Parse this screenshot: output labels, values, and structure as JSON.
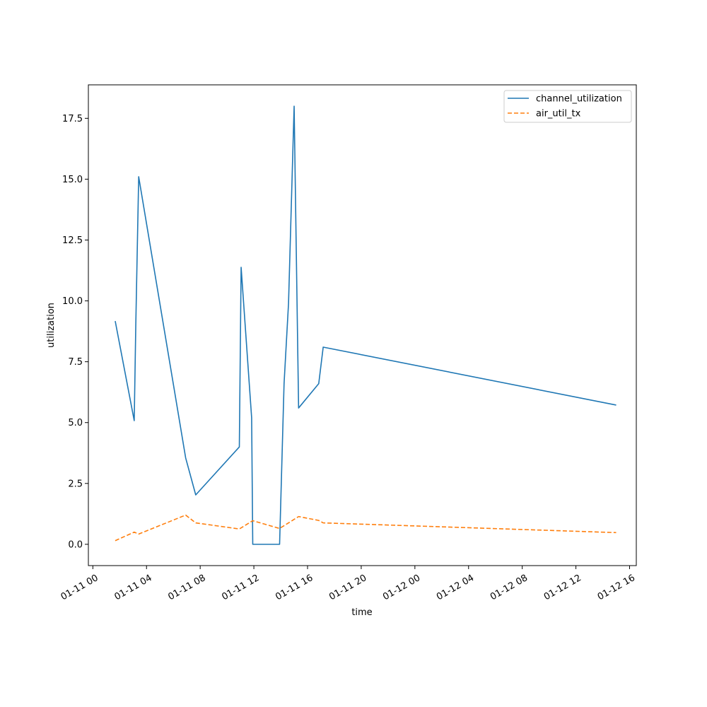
{
  "chart_data": {
    "type": "line",
    "title": "",
    "xlabel": "time",
    "ylabel": "utilization",
    "x_type": "datetime",
    "xlim": [
      "2025-01-10T23:40",
      "2025-01-12T16:30"
    ],
    "ylim": [
      -0.875,
      18.875
    ],
    "x_ticks": [
      {
        "value": "2025-01-11T00:00",
        "label": "01-11 00"
      },
      {
        "value": "2025-01-11T04:00",
        "label": "01-11 04"
      },
      {
        "value": "2025-01-11T08:00",
        "label": "01-11 08"
      },
      {
        "value": "2025-01-11T12:00",
        "label": "01-11 12"
      },
      {
        "value": "2025-01-11T16:00",
        "label": "01-11 16"
      },
      {
        "value": "2025-01-11T20:00",
        "label": "01-11 20"
      },
      {
        "value": "2025-01-12T00:00",
        "label": "01-12 00"
      },
      {
        "value": "2025-01-12T04:00",
        "label": "01-12 04"
      },
      {
        "value": "2025-01-12T08:00",
        "label": "01-12 08"
      },
      {
        "value": "2025-01-12T12:00",
        "label": "01-12 12"
      },
      {
        "value": "2025-01-12T16:00",
        "label": "01-12 16"
      }
    ],
    "y_ticks": [
      {
        "value": 0.0,
        "label": "0.0"
      },
      {
        "value": 2.5,
        "label": "2.5"
      },
      {
        "value": 5.0,
        "label": "5.0"
      },
      {
        "value": 7.5,
        "label": "7.5"
      },
      {
        "value": 10.0,
        "label": "10.0"
      },
      {
        "value": 12.5,
        "label": "12.5"
      },
      {
        "value": 15.0,
        "label": "15.0"
      },
      {
        "value": 17.5,
        "label": "17.5"
      }
    ],
    "grid": false,
    "legend_position": "top-right",
    "series": [
      {
        "name": "channel_utilization",
        "color": "#1f77b4",
        "dash": "solid",
        "points": [
          {
            "x": "2025-01-11T01:40",
            "y": 9.17
          },
          {
            "x": "2025-01-11T03:05",
            "y": 5.08
          },
          {
            "x": "2025-01-11T03:12",
            "y": 9.0
          },
          {
            "x": "2025-01-11T03:25",
            "y": 15.1
          },
          {
            "x": "2025-01-11T06:55",
            "y": 3.55
          },
          {
            "x": "2025-01-11T07:40",
            "y": 2.03
          },
          {
            "x": "2025-01-11T10:55",
            "y": 4.0
          },
          {
            "x": "2025-01-11T11:03",
            "y": 11.38
          },
          {
            "x": "2025-01-11T11:50",
            "y": 5.2
          },
          {
            "x": "2025-01-11T11:55",
            "y": 0.0
          },
          {
            "x": "2025-01-11T13:55",
            "y": 0.0
          },
          {
            "x": "2025-01-11T14:15",
            "y": 6.6
          },
          {
            "x": "2025-01-11T14:35",
            "y": 9.9
          },
          {
            "x": "2025-01-11T15:00",
            "y": 18.0
          },
          {
            "x": "2025-01-11T15:20",
            "y": 5.6
          },
          {
            "x": "2025-01-11T16:50",
            "y": 6.6
          },
          {
            "x": "2025-01-11T17:10",
            "y": 8.1
          },
          {
            "x": "2025-01-12T15:00",
            "y": 5.72
          }
        ]
      },
      {
        "name": "air_util_tx",
        "color": "#ff7f0e",
        "dash": "dashed",
        "points": [
          {
            "x": "2025-01-11T01:40",
            "y": 0.15
          },
          {
            "x": "2025-01-11T03:05",
            "y": 0.5
          },
          {
            "x": "2025-01-11T03:25",
            "y": 0.42
          },
          {
            "x": "2025-01-11T06:55",
            "y": 1.2
          },
          {
            "x": "2025-01-11T07:40",
            "y": 0.88
          },
          {
            "x": "2025-01-11T10:55",
            "y": 0.63
          },
          {
            "x": "2025-01-11T11:55",
            "y": 0.97
          },
          {
            "x": "2025-01-11T13:55",
            "y": 0.65
          },
          {
            "x": "2025-01-11T15:20",
            "y": 1.14
          },
          {
            "x": "2025-01-11T16:50",
            "y": 0.98
          },
          {
            "x": "2025-01-11T17:10",
            "y": 0.88
          },
          {
            "x": "2025-01-12T15:00",
            "y": 0.48
          }
        ]
      }
    ]
  }
}
